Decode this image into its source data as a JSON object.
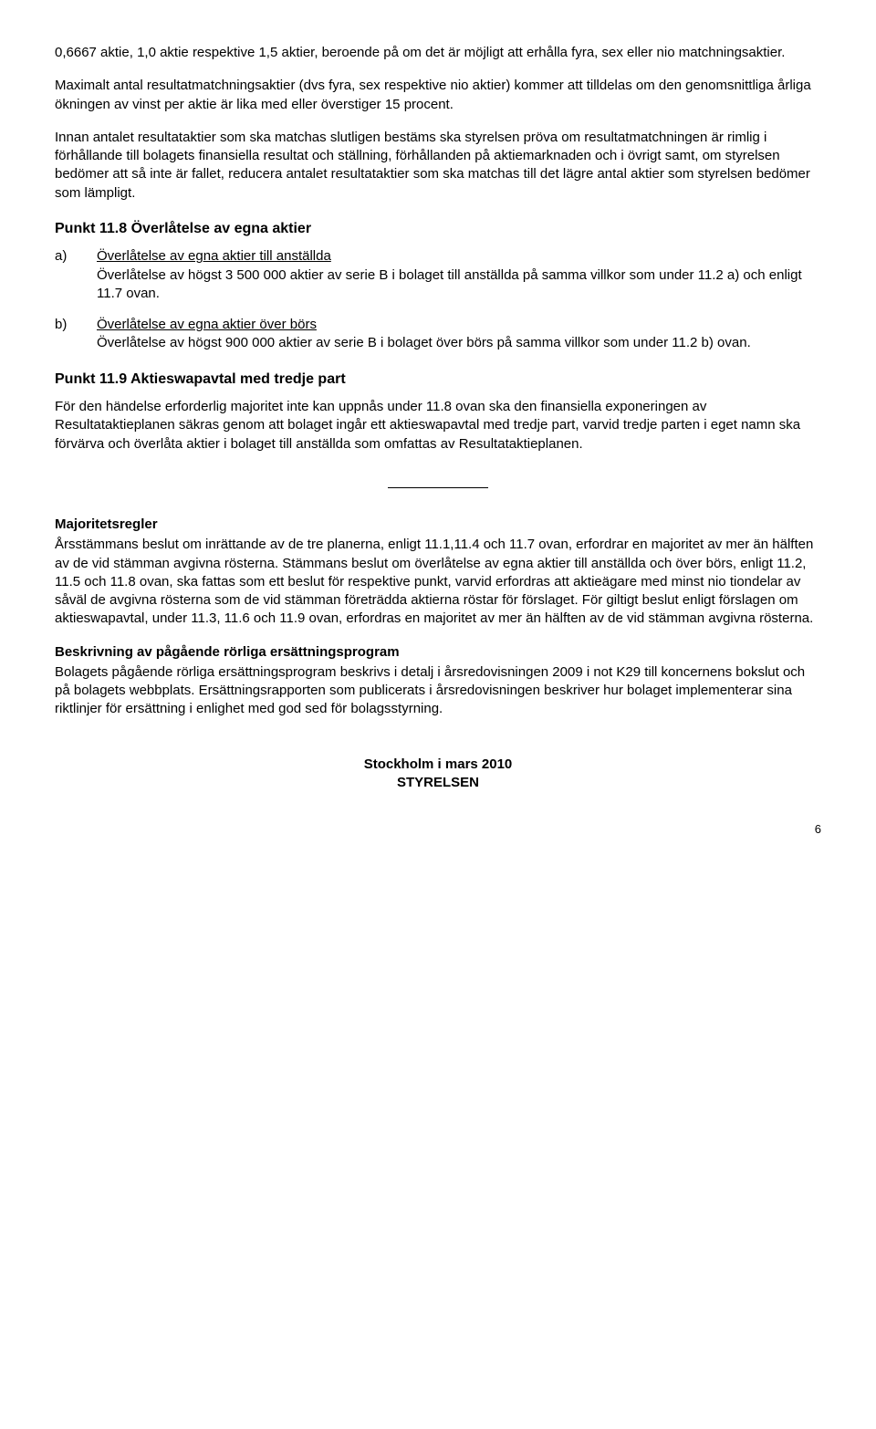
{
  "intro_p1": "0,6667 aktie, 1,0 aktie respektive 1,5 aktier, beroende på om det är möjligt att erhålla fyra, sex eller nio matchningsaktier.",
  "intro_p2": "Maximalt antal resultatmatchningsaktier (dvs fyra, sex respektive nio aktier) kommer att tilldelas om den genomsnittliga årliga ökningen av vinst per aktie är lika med eller överstiger 15 procent.",
  "intro_p3": "Innan antalet resultataktier som ska matchas slutligen bestäms ska styrelsen pröva om resultatmatchningen är rimlig i förhållande till bolagets finansiella resultat och ställning, förhållanden på aktiemarknaden och i övrigt samt, om styrelsen bedömer att så inte är fallet, reducera antalet resultataktier som ska matchas till det lägre antal aktier som styrelsen bedömer som lämpligt.",
  "h_11_8": "Punkt 11.8 Överlåtelse av egna aktier",
  "item_a_marker": "a)",
  "item_a_title": "Överlåtelse av egna aktier till anställda",
  "item_a_body": "Överlåtelse av högst 3 500 000 aktier av serie B i bolaget till anställda på samma villkor som under 11.2 a) och enligt 11.7 ovan.",
  "item_b_marker": "b)",
  "item_b_title": "Överlåtelse av egna aktier över börs",
  "item_b_body": "Överlåtelse av högst 900 000 aktier av serie B i bolaget över börs på samma villkor som under 11.2 b) ovan.",
  "h_11_9": "Punkt 11.9  Aktieswapavtal med tredje part",
  "p_11_9": "För den händelse erforderlig majoritet inte kan uppnås under 11.8 ovan ska den finansiella exponeringen av Resultataktieplanen säkras genom att bolaget ingår ett aktieswapavtal med tredje part, varvid tredje parten i eget namn ska förvärva och överlåta aktier i bolaget till anställda som omfattas av Resultataktieplanen.",
  "h_major": "Majoritetsregler",
  "p_major": "Årsstämmans beslut om inrättande av de tre planerna, enligt 11.1,11.4 och 11.7 ovan, erfordrar en majoritet av mer än hälften av de vid stämman avgivna rösterna. Stämmans beslut om överlåtelse av egna aktier till anställda och över börs, enligt 11.2, 11.5 och 11.8 ovan, ska fattas som ett beslut för respektive punkt, varvid erfordras att aktieägare med minst nio tiondelar av såväl de avgivna rösterna som de vid stämman företrädda aktierna röstar för förslaget. För giltigt beslut enligt förslagen om aktieswapavtal, under 11.3, 11.6 och 11.9 ovan, erfordras en majoritet av mer än hälften av de vid stämman avgivna rösterna.",
  "h_desc": "Beskrivning av pågående rörliga ersättningsprogram",
  "p_desc": "Bolagets pågående rörliga ersättningsprogram beskrivs i detalj i årsredovisningen 2009 i not K29 till koncernens bokslut och på bolagets webbplats. Ersättningsrapporten som publicerats i årsredovisningen beskriver hur bolaget implementerar sina riktlinjer för ersättning i enlighet med god sed för bolagsstyrning.",
  "footer_line1": "Stockholm i mars 2010",
  "footer_line2": "STYRELSEN",
  "page_num": "6"
}
